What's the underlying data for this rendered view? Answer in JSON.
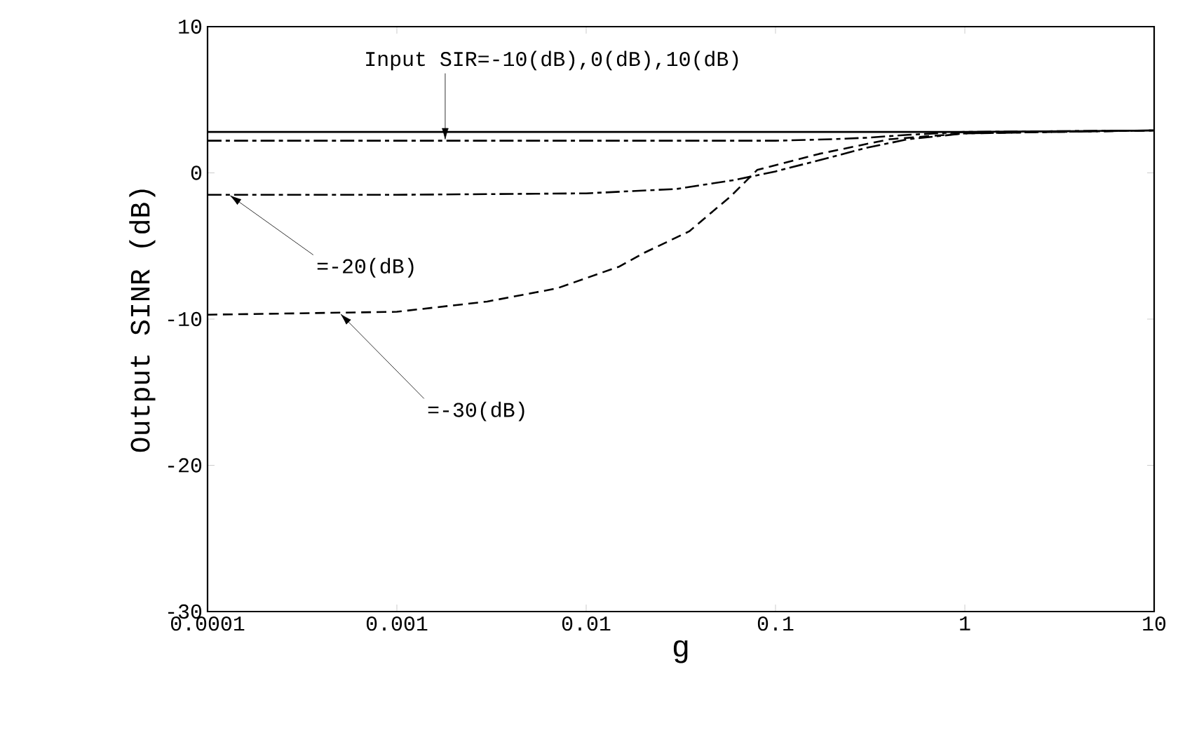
{
  "chart_data": {
    "type": "line",
    "xlabel": "g",
    "ylabel": "Output SINR (dB)",
    "log": "x",
    "xlim": [
      0.0001,
      10
    ],
    "ylim": [
      -30,
      10
    ],
    "xticks": [
      {
        "value": 0.0001,
        "label": "0.0001"
      },
      {
        "value": 0.001,
        "label": "0.001"
      },
      {
        "value": 0.01,
        "label": "0.01"
      },
      {
        "value": 0.1,
        "label": "0.1"
      },
      {
        "value": 1,
        "label": "1"
      },
      {
        "value": 10,
        "label": "10"
      }
    ],
    "yticks": [
      -30,
      -20,
      -10,
      0,
      10
    ],
    "grid": false,
    "series": [
      {
        "color": "#000000",
        "line_style": "solid",
        "x": [
          0.0001,
          0.01,
          1,
          10
        ],
        "values": [
          2.8,
          2.8,
          2.8,
          2.9
        ]
      },
      {
        "color": "#000000",
        "line_style": "dashdotted",
        "x": [
          0.0001,
          0.01,
          0.1,
          0.2,
          0.3,
          0.5,
          1,
          10
        ],
        "values": [
          2.2,
          2.2,
          2.2,
          2.3,
          2.4,
          2.6,
          2.8,
          2.9
        ]
      },
      {
        "color": "#000000",
        "line_style": "dashdotted",
        "x": [
          0.0001,
          0.001,
          0.01,
          0.03,
          0.06,
          0.1,
          0.2,
          0.3,
          0.5,
          1,
          3,
          10
        ],
        "values": [
          -1.5,
          -1.5,
          -1.4,
          -1.1,
          -0.5,
          0.1,
          1.1,
          1.7,
          2.3,
          2.7,
          2.8,
          2.9
        ]
      },
      {
        "color": "#000000",
        "line_style": "dashed",
        "x": [
          0.0001,
          0.001,
          0.003,
          0.007,
          0.015,
          0.02,
          0.035,
          0.058,
          0.08,
          0.17,
          0.4,
          1,
          3,
          10
        ],
        "values": [
          -9.7,
          -9.5,
          -8.8,
          -7.9,
          -6.4,
          -5.5,
          -4.0,
          -1.6,
          0.2,
          1.3,
          2.3,
          2.7,
          2.8,
          2.9
        ]
      }
    ],
    "annotations": [
      {
        "text": "Input SIR=-10(dB),0(dB),10(dB)",
        "x": 0.0018,
        "y": 2.2
      },
      {
        "text": "=-20(dB)",
        "x": 0.00013,
        "y": -1.5
      },
      {
        "text": "=-30(dB)",
        "x": 0.0005,
        "y": -9.6
      }
    ]
  }
}
